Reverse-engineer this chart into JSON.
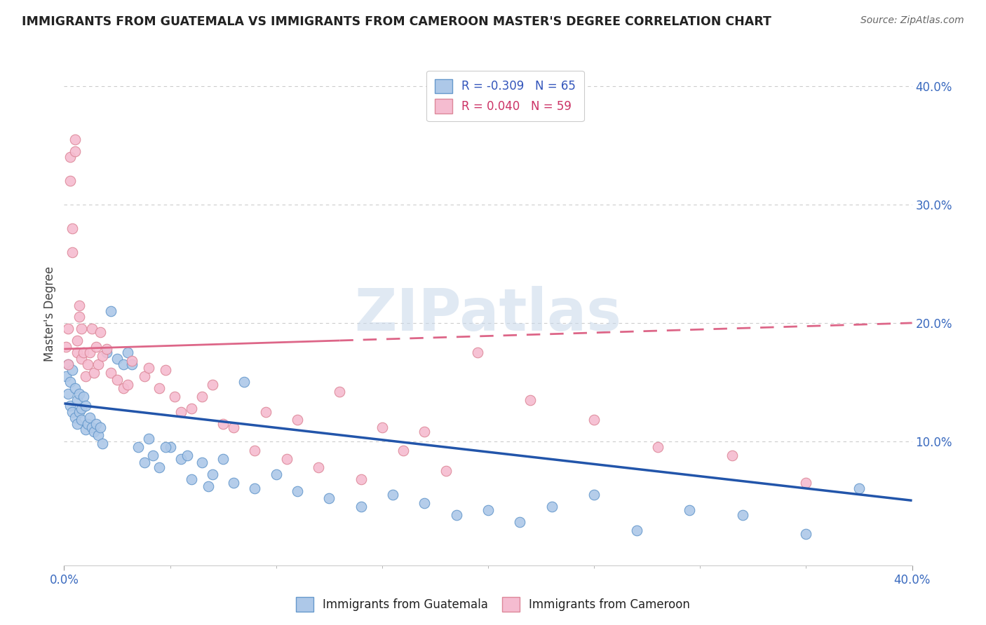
{
  "title": "IMMIGRANTS FROM GUATEMALA VS IMMIGRANTS FROM CAMEROON MASTER'S DEGREE CORRELATION CHART",
  "source": "Source: ZipAtlas.com",
  "ylabel": "Master's Degree",
  "xlim": [
    0.0,
    0.4
  ],
  "ylim": [
    -0.005,
    0.42
  ],
  "xticks": [
    0.0,
    0.4
  ],
  "yticks": [
    0.1,
    0.2,
    0.3,
    0.4
  ],
  "xticklabels": [
    "0.0%",
    "40.0%"
  ],
  "yticklabels": [
    "10.0%",
    "20.0%",
    "30.0%",
    "40.0%"
  ],
  "guatemala_color": "#adc8e8",
  "cameroon_color": "#f5bcd0",
  "guatemala_edge": "#6699cc",
  "cameroon_edge": "#dd8899",
  "trend_blue": "#2255aa",
  "trend_pink": "#dd6688",
  "legend_R_blue": "-0.309",
  "legend_N_blue": "65",
  "legend_R_pink": "0.040",
  "legend_N_pink": "59",
  "watermark": "ZIPatlas",
  "background_color": "#ffffff",
  "guatemala_x": [
    0.001,
    0.002,
    0.002,
    0.003,
    0.003,
    0.004,
    0.004,
    0.005,
    0.005,
    0.006,
    0.006,
    0.007,
    0.007,
    0.008,
    0.008,
    0.009,
    0.01,
    0.01,
    0.011,
    0.012,
    0.013,
    0.014,
    0.015,
    0.016,
    0.017,
    0.018,
    0.02,
    0.022,
    0.025,
    0.028,
    0.03,
    0.032,
    0.035,
    0.038,
    0.042,
    0.045,
    0.05,
    0.055,
    0.06,
    0.065,
    0.07,
    0.075,
    0.08,
    0.09,
    0.1,
    0.11,
    0.125,
    0.14,
    0.155,
    0.17,
    0.185,
    0.2,
    0.215,
    0.23,
    0.25,
    0.27,
    0.295,
    0.32,
    0.35,
    0.375,
    0.04,
    0.048,
    0.058,
    0.068,
    0.085
  ],
  "guatemala_y": [
    0.155,
    0.165,
    0.14,
    0.15,
    0.13,
    0.16,
    0.125,
    0.145,
    0.12,
    0.135,
    0.115,
    0.14,
    0.125,
    0.128,
    0.118,
    0.138,
    0.13,
    0.11,
    0.115,
    0.12,
    0.112,
    0.108,
    0.115,
    0.105,
    0.112,
    0.098,
    0.175,
    0.21,
    0.17,
    0.165,
    0.175,
    0.165,
    0.095,
    0.082,
    0.088,
    0.078,
    0.095,
    0.085,
    0.068,
    0.082,
    0.072,
    0.085,
    0.065,
    0.06,
    0.072,
    0.058,
    0.052,
    0.045,
    0.055,
    0.048,
    0.038,
    0.042,
    0.032,
    0.045,
    0.055,
    0.025,
    0.042,
    0.038,
    0.022,
    0.06,
    0.102,
    0.095,
    0.088,
    0.062,
    0.15
  ],
  "cameroon_x": [
    0.001,
    0.002,
    0.002,
    0.003,
    0.003,
    0.004,
    0.004,
    0.005,
    0.005,
    0.006,
    0.006,
    0.007,
    0.007,
    0.008,
    0.008,
    0.009,
    0.01,
    0.011,
    0.012,
    0.013,
    0.014,
    0.015,
    0.016,
    0.017,
    0.018,
    0.02,
    0.022,
    0.025,
    0.028,
    0.032,
    0.038,
    0.045,
    0.052,
    0.06,
    0.07,
    0.08,
    0.095,
    0.11,
    0.13,
    0.15,
    0.17,
    0.195,
    0.22,
    0.25,
    0.28,
    0.315,
    0.35,
    0.04,
    0.055,
    0.065,
    0.075,
    0.09,
    0.105,
    0.12,
    0.14,
    0.16,
    0.18,
    0.03,
    0.048
  ],
  "cameroon_y": [
    0.18,
    0.165,
    0.195,
    0.34,
    0.32,
    0.28,
    0.26,
    0.345,
    0.355,
    0.175,
    0.185,
    0.215,
    0.205,
    0.17,
    0.195,
    0.175,
    0.155,
    0.165,
    0.175,
    0.195,
    0.158,
    0.18,
    0.165,
    0.192,
    0.172,
    0.178,
    0.158,
    0.152,
    0.145,
    0.168,
    0.155,
    0.145,
    0.138,
    0.128,
    0.148,
    0.112,
    0.125,
    0.118,
    0.142,
    0.112,
    0.108,
    0.175,
    0.135,
    0.118,
    0.095,
    0.088,
    0.065,
    0.162,
    0.125,
    0.138,
    0.115,
    0.092,
    0.085,
    0.078,
    0.068,
    0.092,
    0.075,
    0.148,
    0.16
  ],
  "trend_blue_x0": 0.0,
  "trend_blue_x1": 0.4,
  "trend_blue_y0": 0.132,
  "trend_blue_y1": 0.05,
  "trend_pink_solid_x0": 0.0,
  "trend_pink_solid_x1": 0.13,
  "trend_pink_dash_x0": 0.13,
  "trend_pink_dash_x1": 0.4,
  "trend_pink_y0": 0.178,
  "trend_pink_y1": 0.2
}
